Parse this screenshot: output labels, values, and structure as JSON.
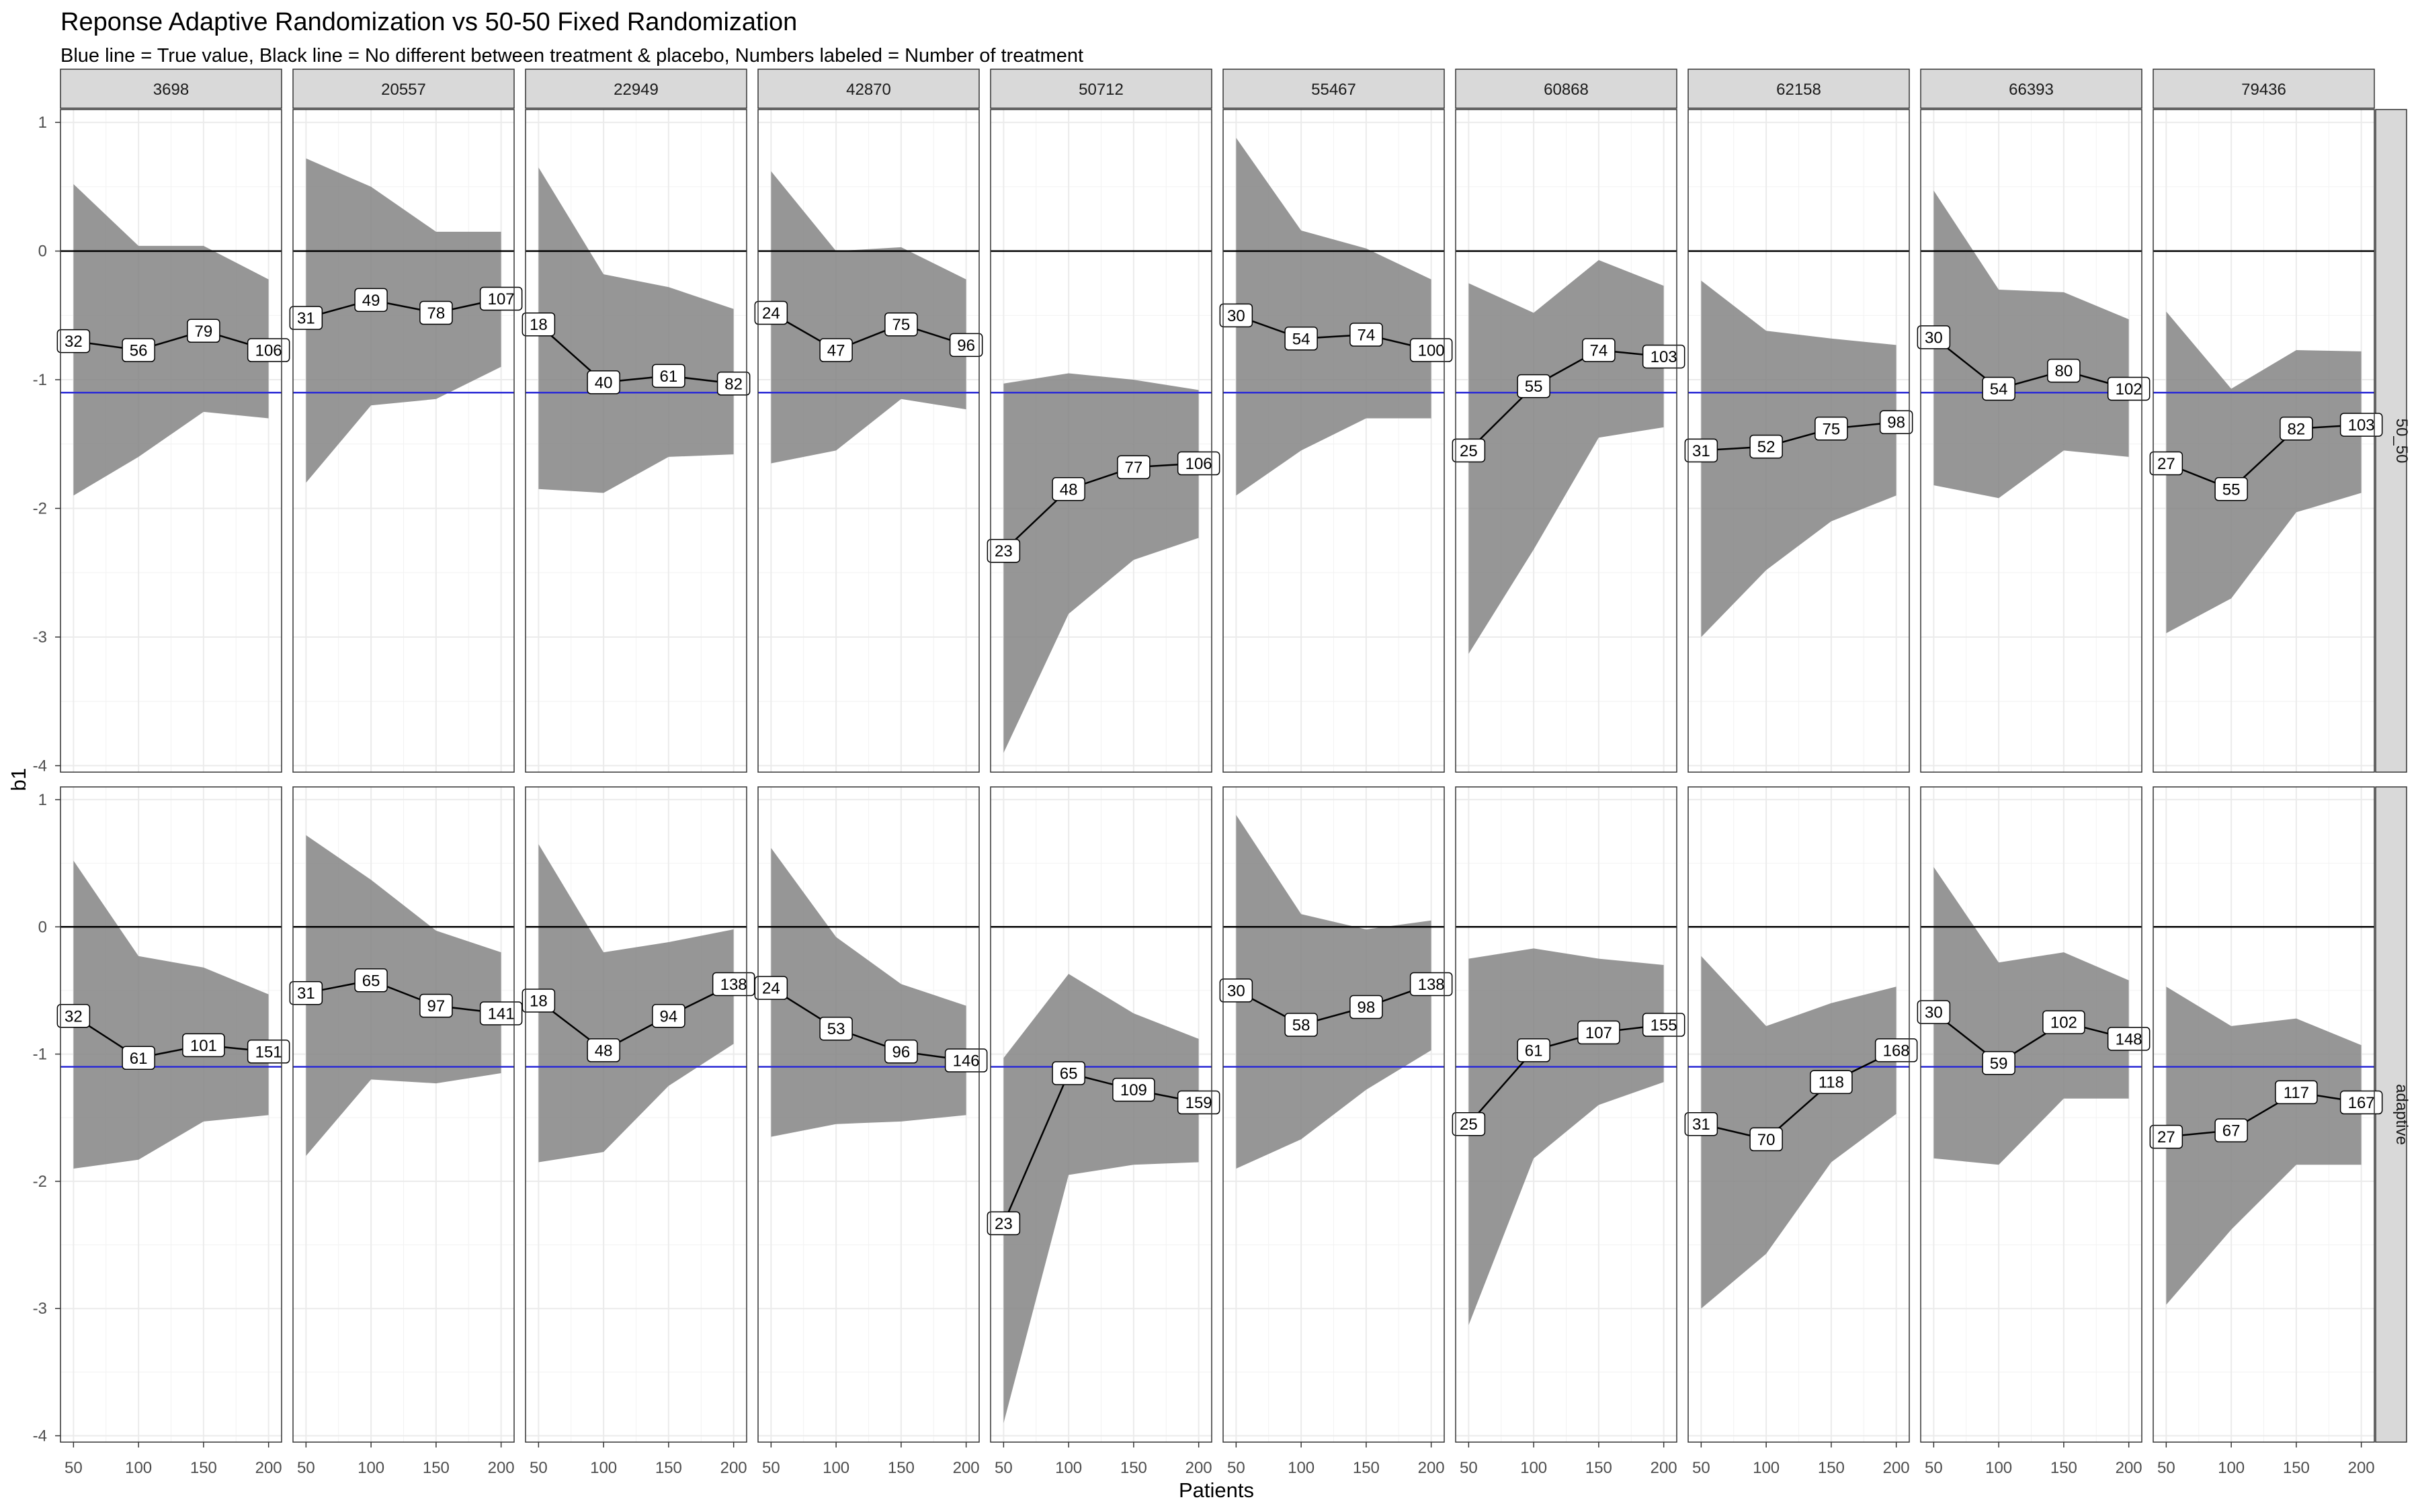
{
  "title": "Reponse Adaptive Randomization vs 50-50 Fixed Randomization",
  "subtitle": "Blue line = True value, Black line = No different between treatment & placebo, Numbers labeled = Number of treatment",
  "colors": {
    "true_line": "#2b2bd6",
    "zero_line": "#000000",
    "ribbon": "#7f7f7f",
    "strip_bg": "#d9d9d9",
    "grid": "#ebebeb"
  },
  "chart_data": {
    "type": "line",
    "xlabel": "Patients",
    "ylabel": "b1",
    "x": [
      50,
      100,
      150,
      200
    ],
    "x_ticks": [
      "50",
      "100",
      "150",
      "200"
    ],
    "y_ticks": [
      "1",
      "0",
      "-1",
      "-2",
      "-3",
      "-4"
    ],
    "xlim": [
      40,
      210
    ],
    "ylim": [
      -4.05,
      1.1
    ],
    "true_value": -1.1,
    "reference_value": 0,
    "columns": [
      "3698",
      "20557",
      "22949",
      "42870",
      "50712",
      "55467",
      "60868",
      "62158",
      "66393",
      "79436"
    ],
    "rows": [
      "50_50",
      "adaptive"
    ],
    "panels": {
      "50_50": [
        {
          "seed": "3698",
          "y": [
            -0.7,
            -0.77,
            -0.62,
            -0.77
          ],
          "labels": [
            "32",
            "56",
            "79",
            "106"
          ],
          "lower": [
            -1.9,
            -1.6,
            -1.25,
            -1.3
          ],
          "upper": [
            0.52,
            0.04,
            0.04,
            -0.22
          ]
        },
        {
          "seed": "20557",
          "y": [
            -0.52,
            -0.38,
            -0.48,
            -0.37
          ],
          "labels": [
            "31",
            "49",
            "78",
            "107"
          ],
          "lower": [
            -1.8,
            -1.2,
            -1.15,
            -0.9
          ],
          "upper": [
            0.72,
            0.5,
            0.15,
            0.15
          ]
        },
        {
          "seed": "22949",
          "y": [
            -0.57,
            -1.02,
            -0.97,
            -1.03
          ],
          "labels": [
            "18",
            "40",
            "61",
            "82"
          ],
          "lower": [
            -1.85,
            -1.88,
            -1.6,
            -1.58
          ],
          "upper": [
            0.65,
            -0.18,
            -0.28,
            -0.45
          ]
        },
        {
          "seed": "42870",
          "y": [
            -0.48,
            -0.77,
            -0.57,
            -0.73
          ],
          "labels": [
            "24",
            "47",
            "75",
            "96"
          ],
          "lower": [
            -1.65,
            -1.55,
            -1.15,
            -1.23
          ],
          "upper": [
            0.62,
            0.0,
            0.03,
            -0.22
          ]
        },
        {
          "seed": "50712",
          "y": [
            -2.33,
            -1.85,
            -1.68,
            -1.65
          ],
          "labels": [
            "23",
            "48",
            "77",
            "106"
          ],
          "lower": [
            -3.9,
            -2.82,
            -2.4,
            -2.23
          ],
          "upper": [
            -1.03,
            -0.95,
            -1.0,
            -1.08
          ]
        },
        {
          "seed": "55467",
          "y": [
            -0.5,
            -0.68,
            -0.65,
            -0.77
          ],
          "labels": [
            "30",
            "54",
            "74",
            "100"
          ],
          "lower": [
            -1.9,
            -1.55,
            -1.3,
            -1.3
          ],
          "upper": [
            0.88,
            0.16,
            0.02,
            -0.22
          ]
        },
        {
          "seed": "60868",
          "y": [
            -1.55,
            -1.05,
            -0.77,
            -0.82
          ],
          "labels": [
            "25",
            "55",
            "74",
            "103"
          ],
          "lower": [
            -3.13,
            -2.32,
            -1.45,
            -1.37
          ],
          "upper": [
            -0.25,
            -0.48,
            -0.07,
            -0.27
          ]
        },
        {
          "seed": "62158",
          "y": [
            -1.55,
            -1.52,
            -1.38,
            -1.33
          ],
          "labels": [
            "31",
            "52",
            "75",
            "98"
          ],
          "lower": [
            -3.0,
            -2.48,
            -2.1,
            -1.9
          ],
          "upper": [
            -0.23,
            -0.62,
            -0.68,
            -0.73
          ]
        },
        {
          "seed": "66393",
          "y": [
            -0.67,
            -1.07,
            -0.93,
            -1.07
          ],
          "labels": [
            "30",
            "54",
            "80",
            "102"
          ],
          "lower": [
            -1.82,
            -1.92,
            -1.55,
            -1.6
          ],
          "upper": [
            0.47,
            -0.3,
            -0.32,
            -0.53
          ]
        },
        {
          "seed": "79436",
          "y": [
            -1.65,
            -1.85,
            -1.38,
            -1.35
          ],
          "labels": [
            "27",
            "55",
            "82",
            "103"
          ],
          "lower": [
            -2.97,
            -2.7,
            -2.03,
            -1.88
          ],
          "upper": [
            -0.47,
            -1.07,
            -0.77,
            -0.78
          ]
        }
      ],
      "adaptive": [
        {
          "seed": "3698",
          "y": [
            -0.7,
            -1.03,
            -0.93,
            -0.98
          ],
          "labels": [
            "32",
            "61",
            "101",
            "151"
          ],
          "lower": [
            -1.9,
            -1.83,
            -1.53,
            -1.48
          ],
          "upper": [
            0.52,
            -0.23,
            -0.32,
            -0.53
          ]
        },
        {
          "seed": "20557",
          "y": [
            -0.52,
            -0.42,
            -0.62,
            -0.68
          ],
          "labels": [
            "31",
            "65",
            "97",
            "141"
          ],
          "lower": [
            -1.8,
            -1.2,
            -1.23,
            -1.15
          ],
          "upper": [
            0.72,
            0.37,
            -0.03,
            -0.2
          ]
        },
        {
          "seed": "22949",
          "y": [
            -0.58,
            -0.97,
            -0.7,
            -0.45
          ],
          "labels": [
            "18",
            "48",
            "94",
            "138"
          ],
          "lower": [
            -1.85,
            -1.77,
            -1.25,
            -0.92
          ],
          "upper": [
            0.65,
            -0.2,
            -0.12,
            -0.02
          ]
        },
        {
          "seed": "42870",
          "y": [
            -0.48,
            -0.8,
            -0.98,
            -1.05
          ],
          "labels": [
            "24",
            "53",
            "96",
            "146"
          ],
          "lower": [
            -1.65,
            -1.55,
            -1.53,
            -1.48
          ],
          "upper": [
            0.62,
            -0.08,
            -0.45,
            -0.62
          ]
        },
        {
          "seed": "50712",
          "y": [
            -2.33,
            -1.15,
            -1.28,
            -1.38
          ],
          "labels": [
            "23",
            "65",
            "109",
            "159"
          ],
          "lower": [
            -3.9,
            -1.95,
            -1.87,
            -1.85
          ],
          "upper": [
            -1.03,
            -0.37,
            -0.68,
            -0.88
          ]
        },
        {
          "seed": "55467",
          "y": [
            -0.5,
            -0.77,
            -0.63,
            -0.45
          ],
          "labels": [
            "30",
            "58",
            "98",
            "138"
          ],
          "lower": [
            -1.9,
            -1.67,
            -1.28,
            -0.97
          ],
          "upper": [
            0.88,
            0.1,
            -0.02,
            0.05
          ]
        },
        {
          "seed": "60868",
          "y": [
            -1.55,
            -0.97,
            -0.83,
            -0.77
          ],
          "labels": [
            "25",
            "61",
            "107",
            "155"
          ],
          "lower": [
            -3.13,
            -1.82,
            -1.4,
            -1.22
          ],
          "upper": [
            -0.25,
            -0.17,
            -0.25,
            -0.3
          ]
        },
        {
          "seed": "62158",
          "y": [
            -1.55,
            -1.67,
            -1.22,
            -0.97
          ],
          "labels": [
            "31",
            "70",
            "118",
            "168"
          ],
          "lower": [
            -3.0,
            -2.57,
            -1.85,
            -1.47
          ],
          "upper": [
            -0.23,
            -0.78,
            -0.6,
            -0.47
          ]
        },
        {
          "seed": "66393",
          "y": [
            -0.67,
            -1.07,
            -0.75,
            -0.88
          ],
          "labels": [
            "30",
            "59",
            "102",
            "148"
          ],
          "lower": [
            -1.82,
            -1.87,
            -1.35,
            -1.35
          ],
          "upper": [
            0.47,
            -0.28,
            -0.2,
            -0.42
          ]
        },
        {
          "seed": "79436",
          "y": [
            -1.65,
            -1.6,
            -1.3,
            -1.38
          ],
          "labels": [
            "27",
            "67",
            "117",
            "167"
          ],
          "lower": [
            -2.97,
            -2.38,
            -1.87,
            -1.87
          ],
          "upper": [
            -0.47,
            -0.78,
            -0.72,
            -0.93
          ]
        }
      ]
    }
  }
}
